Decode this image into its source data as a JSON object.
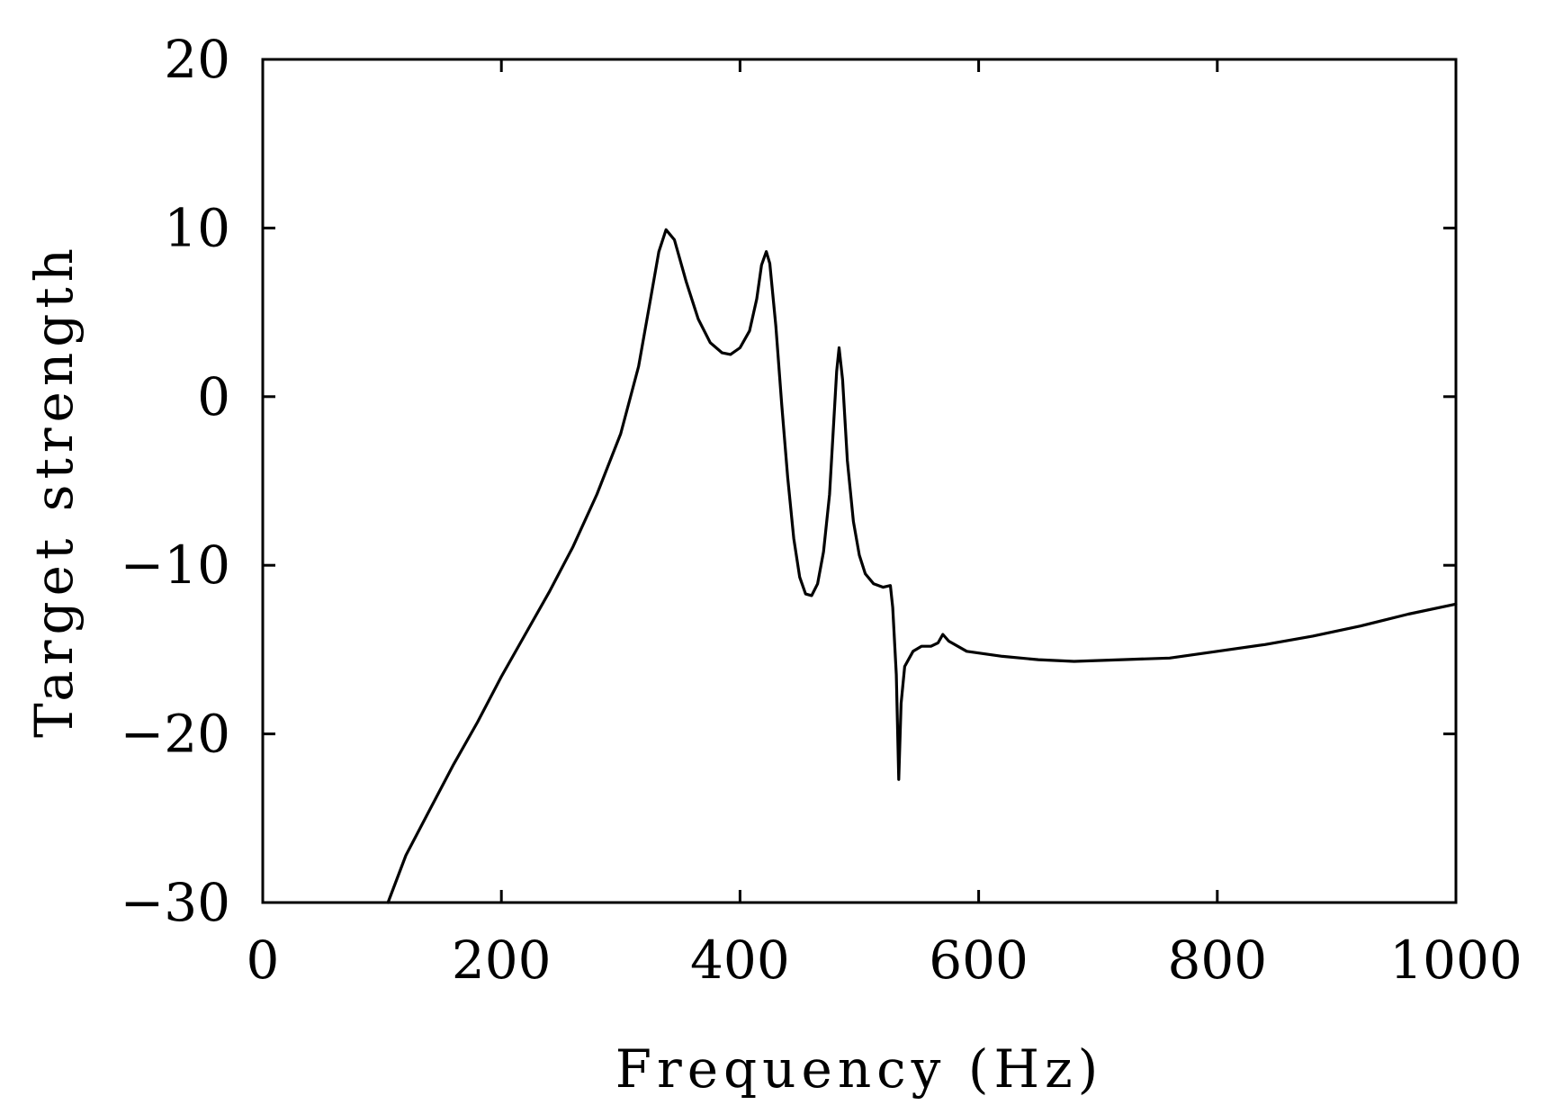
{
  "chart_data": {
    "type": "line",
    "title": "",
    "xlabel": "Frequency (Hz)",
    "ylabel": "Target strength",
    "xlim": [
      0,
      1000
    ],
    "ylim": [
      -30,
      20
    ],
    "xticks": [
      0,
      200,
      400,
      600,
      800,
      1000
    ],
    "yticks": [
      20,
      10,
      0,
      -10,
      -20,
      -30
    ],
    "xtick_labels": [
      "0",
      "200",
      "400",
      "600",
      "800",
      "1000"
    ],
    "ytick_labels": [
      "20",
      "10",
      "0",
      "−10",
      "−20",
      "−30"
    ],
    "grid": false,
    "legend": "none",
    "series": [
      {
        "color": "#000000",
        "points": [
          [
            105,
            -30
          ],
          [
            120,
            -27.2
          ],
          [
            140,
            -24.5
          ],
          [
            160,
            -21.8
          ],
          [
            180,
            -19.3
          ],
          [
            200,
            -16.6
          ],
          [
            220,
            -14.1
          ],
          [
            240,
            -11.6
          ],
          [
            260,
            -8.9
          ],
          [
            280,
            -5.8
          ],
          [
            300,
            -2.2
          ],
          [
            315,
            1.8
          ],
          [
            325,
            5.8
          ],
          [
            332,
            8.6
          ],
          [
            338,
            9.9
          ],
          [
            345,
            9.3
          ],
          [
            355,
            6.8
          ],
          [
            365,
            4.6
          ],
          [
            375,
            3.2
          ],
          [
            385,
            2.6
          ],
          [
            392,
            2.5
          ],
          [
            400,
            2.9
          ],
          [
            408,
            3.9
          ],
          [
            414,
            5.8
          ],
          [
            418,
            7.8
          ],
          [
            422,
            8.6
          ],
          [
            425,
            7.9
          ],
          [
            430,
            4.2
          ],
          [
            435,
            -0.5
          ],
          [
            440,
            -4.8
          ],
          [
            445,
            -8.4
          ],
          [
            450,
            -10.7
          ],
          [
            455,
            -11.7
          ],
          [
            460,
            -11.8
          ],
          [
            465,
            -11.1
          ],
          [
            470,
            -9.2
          ],
          [
            475,
            -5.8
          ],
          [
            478,
            -2.2
          ],
          [
            481,
            1.5
          ],
          [
            483,
            2.9
          ],
          [
            486,
            1.0
          ],
          [
            490,
            -3.8
          ],
          [
            495,
            -7.4
          ],
          [
            500,
            -9.4
          ],
          [
            505,
            -10.5
          ],
          [
            512,
            -11.1
          ],
          [
            520,
            -11.3
          ],
          [
            526,
            -11.2
          ],
          [
            528,
            -12.5
          ],
          [
            531,
            -16.5
          ],
          [
            533,
            -22.7
          ],
          [
            535,
            -18.2
          ],
          [
            538,
            -16.0
          ],
          [
            545,
            -15.1
          ],
          [
            552,
            -14.8
          ],
          [
            560,
            -14.8
          ],
          [
            566,
            -14.6
          ],
          [
            570,
            -14.1
          ],
          [
            575,
            -14.5
          ],
          [
            590,
            -15.1
          ],
          [
            620,
            -15.4
          ],
          [
            650,
            -15.6
          ],
          [
            680,
            -15.7
          ],
          [
            720,
            -15.6
          ],
          [
            760,
            -15.5
          ],
          [
            800,
            -15.1
          ],
          [
            840,
            -14.7
          ],
          [
            880,
            -14.2
          ],
          [
            920,
            -13.6
          ],
          [
            960,
            -12.9
          ],
          [
            1000,
            -12.3
          ]
        ]
      }
    ]
  }
}
